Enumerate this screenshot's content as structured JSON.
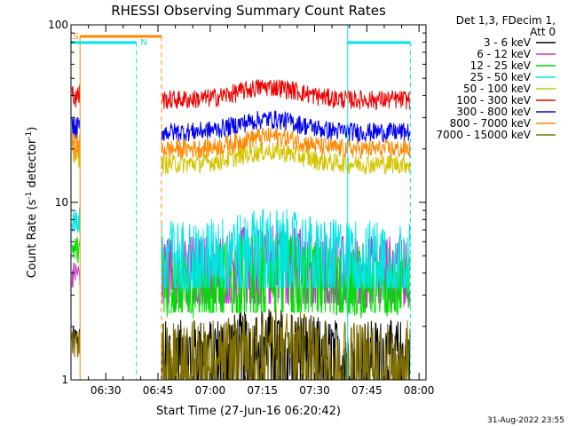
{
  "chart_data": {
    "type": "line",
    "title": "RHESSI Observing Summary Count Rates",
    "xlabel": "Start Time (27-Jun-16 06:20:42)",
    "ylabel": "Count Rate (s",
    "ylabel_sup": "-1",
    "ylabel_mid": " detector",
    "ylabel_sup2": "-1",
    "ylabel_end": ")",
    "y_scale": "log",
    "ylim": [
      1,
      100
    ],
    "xlim_minutes_after_0620": [
      0,
      102
    ],
    "x_ticks": [
      "06:30",
      "06:45",
      "07:00",
      "07:15",
      "07:30",
      "07:45",
      "08:00"
    ],
    "y_ticks": [
      "1",
      "10",
      "100"
    ],
    "legend_header": [
      "Det 1,3, FDecim 1,",
      "Att 0"
    ],
    "legend_position": "top-right",
    "timestamp": "31-Aug-2022 23:55",
    "flag_labels": {
      "saa": "S",
      "night": "N"
    },
    "series": [
      {
        "name": "3 - 6 keV",
        "color": "#000000",
        "level_before_gap": 1.7,
        "level_after_gap": 1.5
      },
      {
        "name": "6 - 12 keV",
        "color": "#cc33cc",
        "level_before_gap": 4.0,
        "level_after_gap": 4.5
      },
      {
        "name": "12 - 25 keV",
        "color": "#00dd00",
        "level_before_gap": 5.5,
        "level_after_gap": 4.0
      },
      {
        "name": "25 - 50 keV",
        "color": "#00e5e5",
        "level_before_gap": 8.0,
        "level_after_gap": 5.5
      },
      {
        "name": "50 - 100 keV",
        "color": "#d4c400",
        "level_before_gap": 19.0,
        "level_after_gap": 16.5
      },
      {
        "name": "100 - 300 keV",
        "color": "#ee0000",
        "level_before_gap": 40.0,
        "level_after_gap": 38.0
      },
      {
        "name": "300 - 800 keV",
        "color": "#0000ee",
        "level_before_gap": 26.0,
        "level_after_gap": 25.0
      },
      {
        "name": "800 - 7000 keV",
        "color": "#ff8800",
        "level_before_gap": 21.0,
        "level_after_gap": 20.0
      },
      {
        "name": "7000 - 15000 keV",
        "color": "#807000",
        "level_before_gap": 1.6,
        "level_after_gap": 1.5
      }
    ]
  }
}
